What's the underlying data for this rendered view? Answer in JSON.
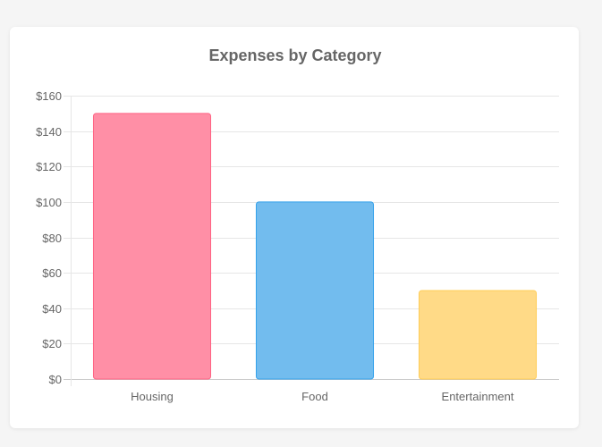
{
  "chart_data": {
    "type": "bar",
    "title": "Expenses by Category",
    "xlabel": "",
    "ylabel": "",
    "categories": [
      "Housing",
      "Food",
      "Entertainment"
    ],
    "values": [
      150,
      100,
      50
    ],
    "ylim": [
      0,
      160
    ],
    "ytick_step": 20,
    "ytick_prefix": "$",
    "grid": true,
    "legend": "none",
    "colors": {
      "fills": [
        "#ff8fa6",
        "#72bcee",
        "#ffda87"
      ],
      "borders": [
        "#ff6384",
        "#36a2eb",
        "#ffcd56"
      ],
      "grid": "#e6e6e6",
      "axis": "#cccccc"
    }
  }
}
